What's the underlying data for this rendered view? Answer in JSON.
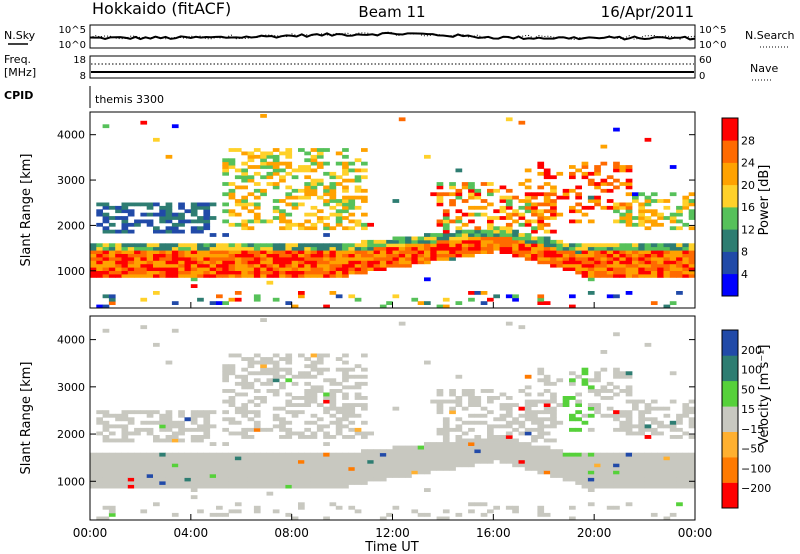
{
  "header": {
    "station": "Hokkaido (fitACF)",
    "beam": "Beam 11",
    "date": "16/Apr/2011"
  },
  "noise_panel": {
    "left_label": "N.Sky",
    "right_label": "N.Search",
    "left_ticks": [
      "10^5",
      "10^0"
    ],
    "right_ticks": [
      "10^5",
      "10^0"
    ]
  },
  "freq_panel": {
    "left_label_line1": "Freq.",
    "left_label_line2": "[MHz]",
    "right_label": "Nave",
    "left_ticks": [
      "18",
      "8"
    ],
    "right_ticks": [
      "60",
      "0"
    ]
  },
  "cpid_panel": {
    "label": "CPID",
    "value": "themis 3300"
  },
  "colors": {
    "power": [
      "#0000ff",
      "#214aa8",
      "#2e7d72",
      "#56c15a",
      "#ffd12a",
      "#ffa200",
      "#ff6a00",
      "#ff0000"
    ],
    "velocity": [
      "#ff0000",
      "#ff7a00",
      "#ffb030",
      "#c8c8c0",
      "#56d13a",
      "#2e7d72",
      "#214aa8"
    ],
    "ground_scatter": "#c8c8c0"
  },
  "chart_data": [
    {
      "type": "heatmap",
      "quantity": "power",
      "title": "",
      "xlabel": "Time UT",
      "ylabel": "Slant Range [km]",
      "x_range_hours": [
        0,
        24
      ],
      "ylim": [
        180,
        4500
      ],
      "y_ticks": [
        1000,
        2000,
        3000,
        4000
      ],
      "x_ticks": [
        "00:00",
        "04:00",
        "08:00",
        "12:00",
        "16:00",
        "20:00",
        "00:00"
      ],
      "colorbar_label": "Power [dB]",
      "colorbar_ticks": [
        "4",
        "8",
        "12",
        "16",
        "20",
        "24",
        "28"
      ],
      "features": [
        {
          "name": "main band",
          "start_h": 0,
          "end_h": 24,
          "range_km": [
            750,
            1450
          ],
          "level_db": 28
        },
        {
          "name": "upper layer",
          "start_h": 5,
          "end_h": 11,
          "range_km": [
            2000,
            3600
          ],
          "level_db": 18
        },
        {
          "name": "afternoon streaks",
          "start_h": 13.5,
          "end_h": 18.5,
          "range_km": [
            1800,
            2900
          ],
          "level_db": 26
        }
      ]
    },
    {
      "type": "heatmap",
      "quantity": "velocity",
      "title": "",
      "xlabel": "Time UT",
      "ylabel": "Slant Range [km]",
      "x_range_hours": [
        0,
        24
      ],
      "ylim": [
        180,
        4500
      ],
      "y_ticks": [
        1000,
        2000,
        3000,
        4000
      ],
      "x_ticks": [
        "00:00",
        "04:00",
        "08:00",
        "12:00",
        "16:00",
        "20:00",
        "00:00"
      ],
      "colorbar_label": "Velocity [m s⁻¹]",
      "colorbar_ticks": [
        "200",
        "100",
        "50",
        "15",
        "−15",
        "−50",
        "−100",
        "−200"
      ],
      "features": [
        {
          "name": "ground scatter band",
          "start_h": 0,
          "end_h": 24,
          "range_km": [
            750,
            1450
          ],
          "velocity_ms": 0
        },
        {
          "name": "positive velocity patch",
          "start_h": 18.5,
          "end_h": 20,
          "range_km": [
            1500,
            3400
          ],
          "velocity_ms": 75
        }
      ]
    }
  ]
}
